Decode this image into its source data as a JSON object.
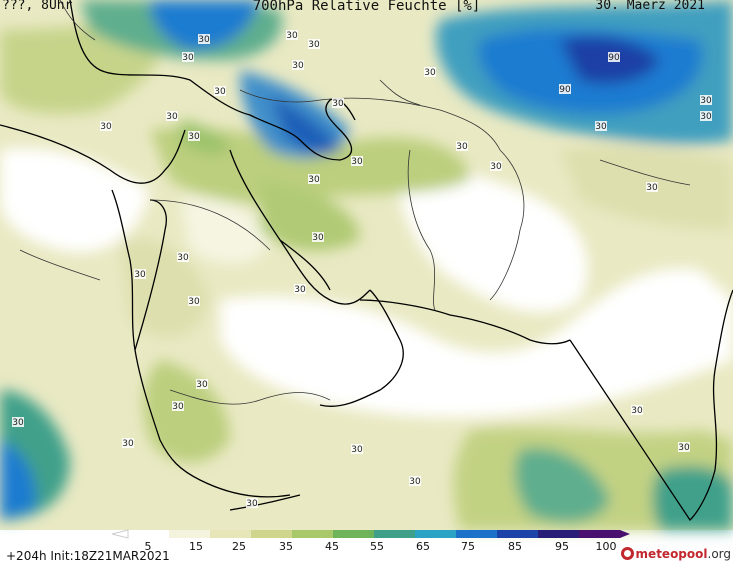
{
  "header": {
    "left": "???, 8Uhr",
    "title": "700hPa Relative Feuchte [%]",
    "date": "30. Maerz 2021"
  },
  "footer": {
    "forecast": "+204h  Init:18Z21MAR2021",
    "brand_main": "meteopool",
    "brand_suffix": ".org"
  },
  "colorbar": {
    "labels": [
      "5",
      "15",
      "25",
      "35",
      "45",
      "55",
      "65",
      "75",
      "85",
      "95",
      "100"
    ],
    "colors": [
      "#ffffff",
      "#f4f4de",
      "#e6e6b8",
      "#cfd68c",
      "#a9c86a",
      "#6fb35a",
      "#3fa08a",
      "#2aa3c4",
      "#1b72c8",
      "#1c44a8",
      "#281e78",
      "#4a1070"
    ]
  },
  "map": {
    "contour_labels": [
      "30",
      "30",
      "30",
      "30",
      "30",
      "30",
      "30",
      "30",
      "30",
      "30",
      "30",
      "30",
      "30",
      "30",
      "30",
      "30",
      "30",
      "30",
      "30",
      "30",
      "30",
      "30",
      "30",
      "30",
      "30",
      "30",
      "30",
      "30",
      "30",
      "30",
      "90",
      "90",
      "30",
      "30",
      "30"
    ],
    "colors": {
      "dry": "#ffffff",
      "low": "#f3f3dc",
      "mid": "#dedfae",
      "green": "#bccf7e",
      "teal": "#5fae8e",
      "blue": "#1e7bd0",
      "deep": "#1c3fa6",
      "coast": "#000000"
    }
  }
}
